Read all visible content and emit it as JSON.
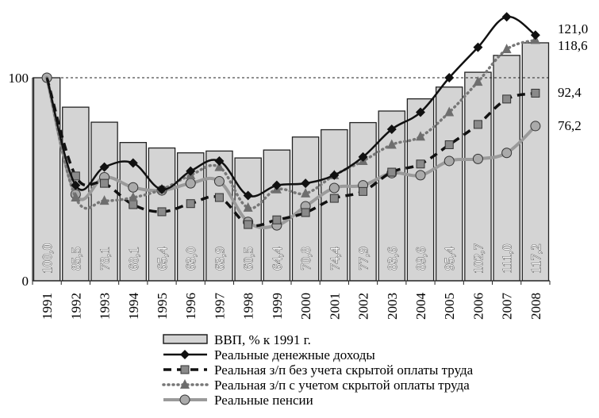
{
  "chart_data": {
    "type": "bar",
    "title": "",
    "xlabel": "",
    "ylabel": "",
    "ylim": [
      0,
      135
    ],
    "y_ticks": [
      "0",
      "100"
    ],
    "reference_line": 100,
    "categories": [
      "1991",
      "1992",
      "1993",
      "1994",
      "1995",
      "1996",
      "1997",
      "1998",
      "1999",
      "2000",
      "2001",
      "2002",
      "2003",
      "2004",
      "2005",
      "2006",
      "2007",
      "2008"
    ],
    "bars": {
      "name": "ВВП, % к 1991 г.",
      "values": [
        100.0,
        85.5,
        78.1,
        68.1,
        65.4,
        63.0,
        63.9,
        60.5,
        64.4,
        70.8,
        74.4,
        77.9,
        83.6,
        89.6,
        95.4,
        102.7,
        111.0,
        117.2
      ],
      "labels": [
        "100,0",
        "85,5",
        "78,1",
        "68,1",
        "65,4",
        "63,0",
        "63,9",
        "60,5",
        "64,4",
        "70,8",
        "74,4",
        "77,9",
        "83,6",
        "89,6",
        "95,4",
        "102,7",
        "111,0",
        "117,2"
      ],
      "color": "#d4d4d4"
    },
    "series": [
      {
        "name": "Реальные денежные доходы",
        "style": "solid",
        "marker": "diamond",
        "color": "#111111",
        "values": [
          100,
          47,
          56,
          58,
          45,
          54,
          59,
          42,
          47,
          48,
          52,
          61,
          74.6,
          83,
          100,
          115,
          130,
          121.0
        ],
        "end_label": "121,0"
      },
      {
        "name": "Реальная з/п без учета скрытой оплаты труда",
        "style": "dashed",
        "marker": "square",
        "color": "#111111",
        "marker_color": "#8a8a8a",
        "values": [
          100,
          51.6,
          48,
          37.5,
          34,
          38,
          41,
          27.7,
          30,
          33.6,
          40.6,
          44,
          53.5,
          57.5,
          67,
          77,
          89.5,
          92.4
        ],
        "end_label": "92,4"
      },
      {
        "name": "Реальная з/п с учетом скрытой оплаты труда",
        "style": "dotted",
        "marker": "triangle",
        "color": "#777777",
        "values": [
          100,
          41,
          39.4,
          41,
          45,
          52,
          56,
          36,
          45,
          43,
          52,
          59,
          67,
          71,
          83,
          98,
          114,
          118.6
        ],
        "end_label": "118,6"
      },
      {
        "name": "Реальные пенсии",
        "style": "solid-thick",
        "marker": "circle",
        "color": "#9a9a9a",
        "values": [
          100,
          42.6,
          51,
          46,
          44.5,
          48,
          49,
          29,
          27.3,
          36.7,
          45.7,
          47,
          53,
          52,
          59,
          60,
          63,
          76.2
        ],
        "end_label": "76,2"
      }
    ],
    "grid": false,
    "legend_position": "bottom"
  }
}
